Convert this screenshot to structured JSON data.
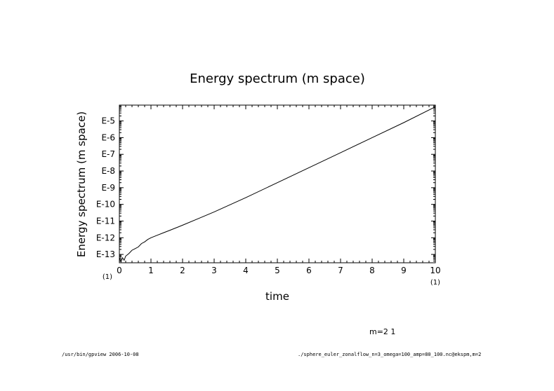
{
  "chart_data": {
    "type": "line",
    "title": "Energy spectrum (m space)",
    "xlabel": "time",
    "ylabel": "Energy spectrum (m space)",
    "xlim": [
      0,
      10
    ],
    "ylim": [
      -13.5,
      -4.05
    ],
    "y_scale": "log10",
    "x_ticks": [
      0,
      1,
      2,
      3,
      4,
      5,
      6,
      7,
      8,
      9,
      10
    ],
    "y_ticks": [
      {
        "v": -13,
        "label": "E-13"
      },
      {
        "v": -12,
        "label": "E-12"
      },
      {
        "v": -11,
        "label": "E-11"
      },
      {
        "v": -10,
        "label": "E-10"
      },
      {
        "v": -9,
        "label": "E-9"
      },
      {
        "v": -8,
        "label": "E-8"
      },
      {
        "v": -7,
        "label": "E-7"
      },
      {
        "v": -6,
        "label": "E-6"
      },
      {
        "v": -5,
        "label": "E-5"
      }
    ],
    "x_unit_left": "(1)",
    "x_unit_right": "(1)",
    "series": [
      {
        "x": [
          0,
          0.05,
          0.1,
          0.15,
          0.2,
          0.3,
          0.4,
          0.5,
          0.6,
          0.7,
          0.8,
          0.9,
          1.0,
          1.2,
          1.4,
          1.6,
          1.8,
          2.0,
          2.5,
          3.0,
          4.0,
          5.0,
          6.0,
          7.0,
          8.0,
          9.0,
          10.0
        ],
        "y": [
          -13.2,
          -13.45,
          -13.2,
          -13.35,
          -13.1,
          -12.95,
          -12.75,
          -12.65,
          -12.55,
          -12.35,
          -12.25,
          -12.1,
          -12.0,
          -11.85,
          -11.7,
          -11.55,
          -11.4,
          -11.25,
          -10.85,
          -10.45,
          -9.6,
          -8.7,
          -7.8,
          -6.9,
          -6.0,
          -5.1,
          -4.15
        ]
      }
    ],
    "grid": false,
    "legend": "none"
  },
  "annotation": "m=2  1",
  "footer_left": "/usr/bin/gpview  2006-10-08",
  "footer_right": "./sphere_euler_zonalflow_n=3_omega=100_amp=80_100.nc@ekspm,m=2"
}
